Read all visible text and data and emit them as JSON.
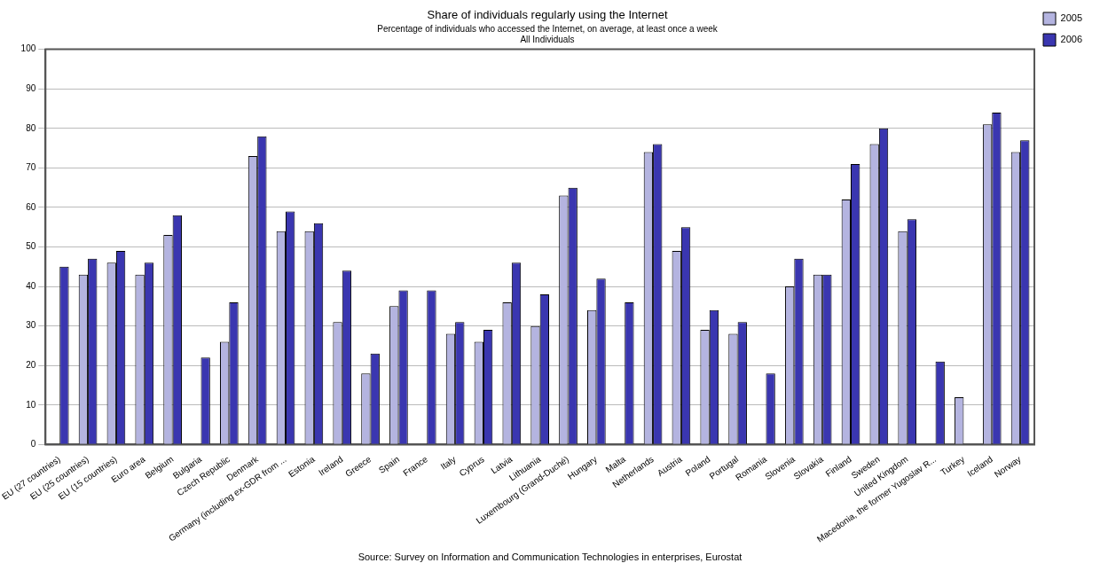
{
  "chart_data": {
    "type": "bar",
    "title": "Share of individuals regularly using the Internet",
    "subtitle": "Percentage of individuals who accessed the Internet, on average, at least once a week\nAll Individuals",
    "categories": [
      "EU (27 countries)",
      "EU (25 countries)",
      "EU (15 countries)",
      "Euro area",
      "Belgium",
      "Bulgaria",
      "Czech Republic",
      "Denmark",
      "Germany (including ex-GDR from ...",
      "Estonia",
      "Ireland",
      "Greece",
      "Spain",
      "France",
      "Italy",
      "Cyprus",
      "Latvia",
      "Lithuania",
      "Luxembourg (Grand-Duché)",
      "Hungary",
      "Malta",
      "Netherlands",
      "Austria",
      "Poland",
      "Portugal",
      "Romania",
      "Slovenia",
      "Slovakia",
      "Finland",
      "Sweden",
      "United Kingdom",
      "Macedonia, the former Yugoslav R...",
      "Turkey",
      "Iceland",
      "Norway"
    ],
    "series": [
      {
        "name": "2005",
        "color": "#b4b4e0",
        "values": [
          null,
          43,
          46,
          43,
          53,
          null,
          26,
          73,
          54,
          54,
          31,
          18,
          35,
          null,
          28,
          26,
          36,
          30,
          63,
          34,
          null,
          74,
          49,
          29,
          28,
          null,
          40,
          43,
          62,
          76,
          54,
          null,
          12,
          81,
          74
        ]
      },
      {
        "name": "2006",
        "color": "#3a36b0",
        "values": [
          45,
          47,
          49,
          46,
          58,
          22,
          36,
          78,
          59,
          56,
          44,
          23,
          39,
          39,
          31,
          29,
          46,
          38,
          65,
          42,
          36,
          76,
          55,
          34,
          31,
          18,
          47,
          43,
          71,
          80,
          57,
          21,
          null,
          84,
          77
        ]
      }
    ],
    "ylim": [
      0,
      100
    ],
    "yticks": [
      0,
      10,
      20,
      30,
      40,
      50,
      60,
      70,
      80,
      90,
      100
    ],
    "grid": "y",
    "legend": "top right",
    "annotations": [
      "Source: Survey on Information and Communication Technologies in enterprises, Eurostat"
    ]
  }
}
